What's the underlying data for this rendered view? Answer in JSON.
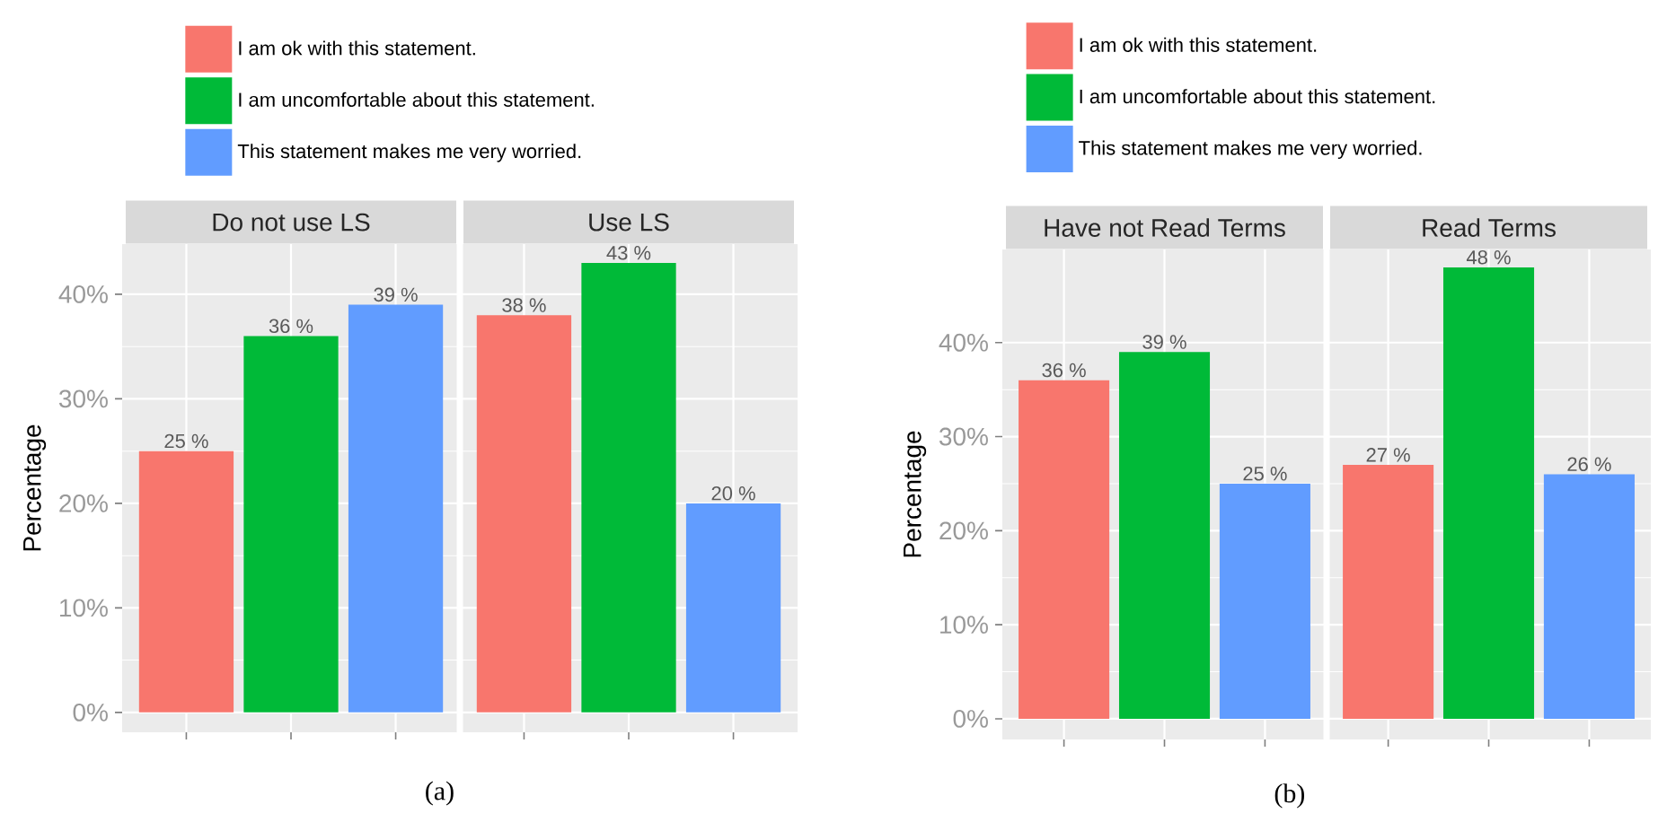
{
  "chart_data": [
    {
      "type": "bar",
      "ylabel": "Percentage",
      "categories": [
        "Do not use LS",
        "Use LS"
      ],
      "series": [
        {
          "name": "I am ok with this statement.",
          "color": "#f8766d",
          "values": [
            25,
            38
          ],
          "value_labels": [
            "25 %",
            "38 %"
          ]
        },
        {
          "name": "I am uncomfortable about this statement.",
          "color": "#00ba38",
          "values": [
            36,
            43
          ],
          "value_labels": [
            "36 %",
            "43 %"
          ]
        },
        {
          "name": "This statement makes me very worried.",
          "color": "#619cff",
          "values": [
            39,
            20
          ],
          "value_labels": [
            "39 %",
            "20 %"
          ]
        }
      ],
      "ylim": [
        -1.9,
        44.8
      ],
      "yticks": [
        {
          "value": 0,
          "label": "0%"
        },
        {
          "value": 10,
          "label": "10%"
        },
        {
          "value": 20,
          "label": "20%"
        },
        {
          "value": 30,
          "label": "30%"
        },
        {
          "value": 40,
          "label": "40%"
        }
      ],
      "grid": true,
      "legend": "top",
      "annotations": [
        "(a)"
      ]
    },
    {
      "type": "bar",
      "ylabel": "Percentage",
      "categories": [
        "Have not Read Terms",
        "Read Terms"
      ],
      "series": [
        {
          "name": "I am ok with this statement.",
          "color": "#f8766d",
          "values": [
            36,
            27
          ],
          "value_labels": [
            "36 %",
            "27 %"
          ]
        },
        {
          "name": "I am uncomfortable about this statement.",
          "color": "#00ba38",
          "values": [
            39,
            48
          ],
          "value_labels": [
            "39 %",
            "48 %"
          ]
        },
        {
          "name": "This statement makes me very worried.",
          "color": "#619cff",
          "values": [
            25,
            26
          ],
          "value_labels": [
            "25 %",
            "26 %"
          ]
        }
      ],
      "ylim": [
        -2.2,
        49.9
      ],
      "yticks": [
        {
          "value": 0,
          "label": "0%"
        },
        {
          "value": 10,
          "label": "10%"
        },
        {
          "value": 20,
          "label": "20%"
        },
        {
          "value": 30,
          "label": "30%"
        },
        {
          "value": 40,
          "label": "40%"
        }
      ],
      "grid": true,
      "legend": "top",
      "annotations": [
        "(b)"
      ]
    }
  ]
}
